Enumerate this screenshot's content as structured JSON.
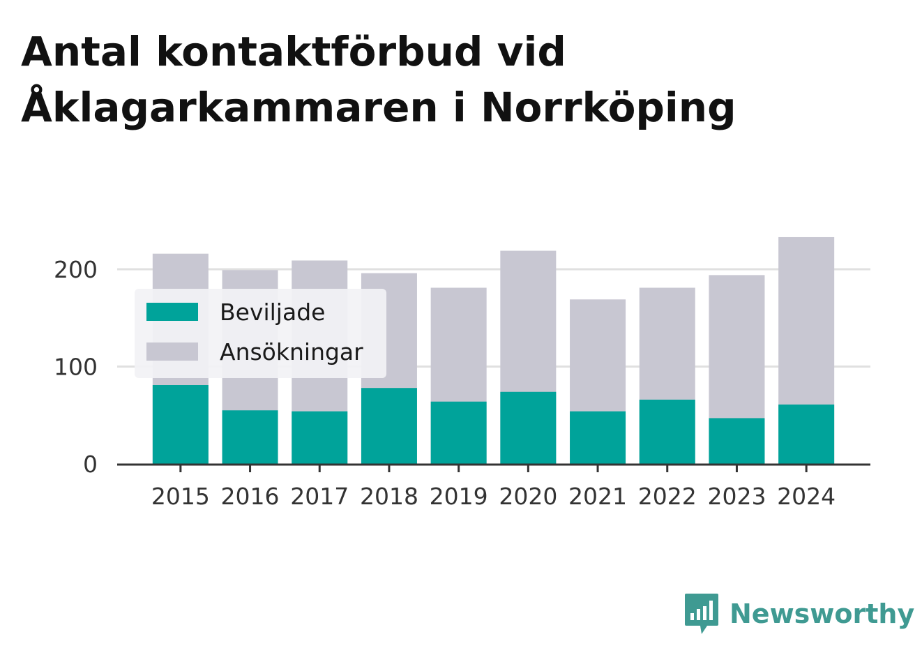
{
  "title_line1": "Antal kontaktförbud vid",
  "title_line2": "Åklagarkammaren i Norrköping",
  "brand": {
    "name": "Newsworthy",
    "icon": "newsworthy-bar-chart-icon",
    "color": "#3f9a92"
  },
  "chart_data": {
    "type": "bar",
    "stacked": false,
    "overlaid": true,
    "categories": [
      "2015",
      "2016",
      "2017",
      "2018",
      "2019",
      "2020",
      "2021",
      "2022",
      "2023",
      "2024"
    ],
    "series": [
      {
        "name": "Beviljade",
        "color": "#00a39a",
        "values": [
          81,
          55,
          54,
          78,
          64,
          74,
          54,
          66,
          47,
          61
        ]
      },
      {
        "name": "Ansökningar",
        "color": "#c8c7d2",
        "values": [
          216,
          199,
          209,
          196,
          181,
          219,
          169,
          181,
          194,
          233
        ]
      }
    ],
    "yticks": [
      0,
      100,
      200
    ],
    "ylim": [
      0,
      240
    ],
    "grid": true,
    "legend_position": "top-left"
  }
}
